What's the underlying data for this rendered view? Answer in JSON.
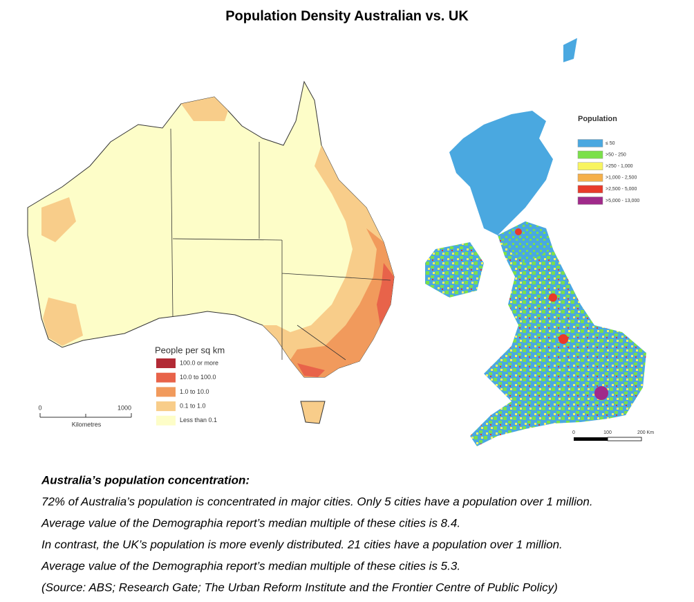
{
  "title": "Population Density Australian vs. UK",
  "australia_map": {
    "legend": {
      "title": "People per sq km",
      "items": [
        {
          "label": "100.0 or more",
          "color": "#b22a35"
        },
        {
          "label": "10.0 to 100.0",
          "color": "#e8634a"
        },
        {
          "label": "1.0 to 10.0",
          "color": "#f19a5c"
        },
        {
          "label": "0.1 to 1.0",
          "color": "#f8cd8a"
        },
        {
          "label": "Less than 0.1",
          "color": "#fdfdc8"
        }
      ]
    },
    "scale": {
      "labels": [
        "0",
        "1000"
      ],
      "unit": "Kilometres"
    }
  },
  "uk_map": {
    "legend": {
      "title": "Population",
      "items": [
        {
          "label": "≤ 50",
          "color": "#4aa8e0"
        },
        {
          "label": ">50 - 250",
          "color": "#7be04a"
        },
        {
          "label": ">250 - 1,000",
          "color": "#f8f460"
        },
        {
          "label": ">1,000 - 2,500",
          "color": "#f5b04a"
        },
        {
          "label": ">2,500 - 5,000",
          "color": "#e83a2a"
        },
        {
          "label": ">5,000 - 13,000",
          "color": "#a02a8a"
        }
      ]
    },
    "scale": {
      "labels": [
        "0",
        "100",
        "200 Km"
      ]
    }
  },
  "text": {
    "heading": "Australia’s population concentration:",
    "lines": [
      "72% of Australia’s population is concentrated in major cities. Only 5 cities have a population over 1 million.",
      "Average value of the Demographia report’s median multiple of these cities is 8.4.",
      "In contrast, the UK’s population is more evenly distributed. 21 cities have a population over 1 million.",
      "Average value of the Demographia report’s median multiple of these cities is 5.3.",
      "(Source: ABS; Research Gate; The Urban Reform Institute and the Frontier Centre of Public Policy)"
    ]
  }
}
